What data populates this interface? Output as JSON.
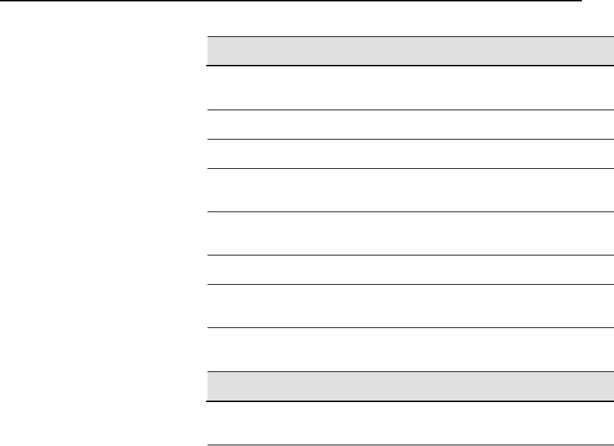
{
  "document": {
    "colors": {
      "header_fill": "#e0e0e0",
      "rule": "#000000",
      "background": "#ffffff"
    },
    "tables": [
      {
        "header_rows": 1,
        "body_rows": 8
      },
      {
        "header_rows": 1,
        "body_rows": 1
      }
    ]
  }
}
